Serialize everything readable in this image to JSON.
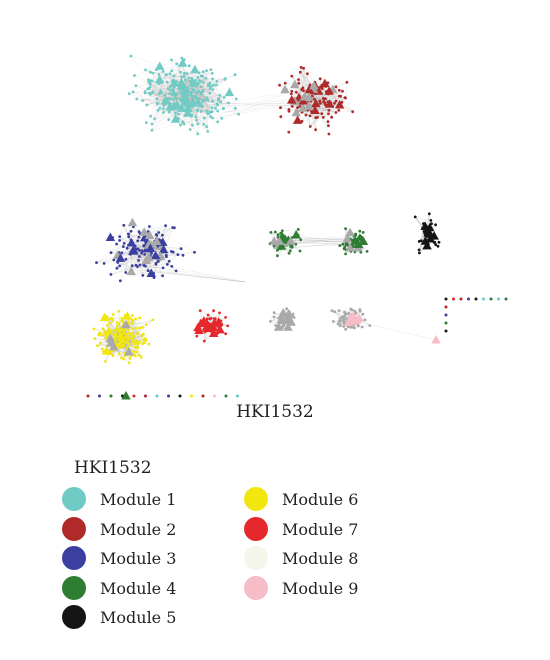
{
  "figure": {
    "caption": "HKI1532"
  },
  "legend": {
    "title": "HKI1532",
    "items": [
      {
        "label": "Module 1",
        "color": "#6fcbc4"
      },
      {
        "label": "Module 2",
        "color": "#b02a2a"
      },
      {
        "label": "Module 3",
        "color": "#3b3fa0"
      },
      {
        "label": "Module 4",
        "color": "#2e7d32"
      },
      {
        "label": "Module 5",
        "color": "#151515"
      },
      {
        "label": "Module 6",
        "color": "#f2e60f"
      },
      {
        "label": "Module 7",
        "color": "#e4282c"
      },
      {
        "label": "Module 8",
        "color": "#f6f5ea"
      },
      {
        "label": "Module 9",
        "color": "#f6bcc8"
      }
    ]
  },
  "colors": {
    "edge": "#9a9a9a",
    "hub_gray": "#a9a9a9"
  }
}
